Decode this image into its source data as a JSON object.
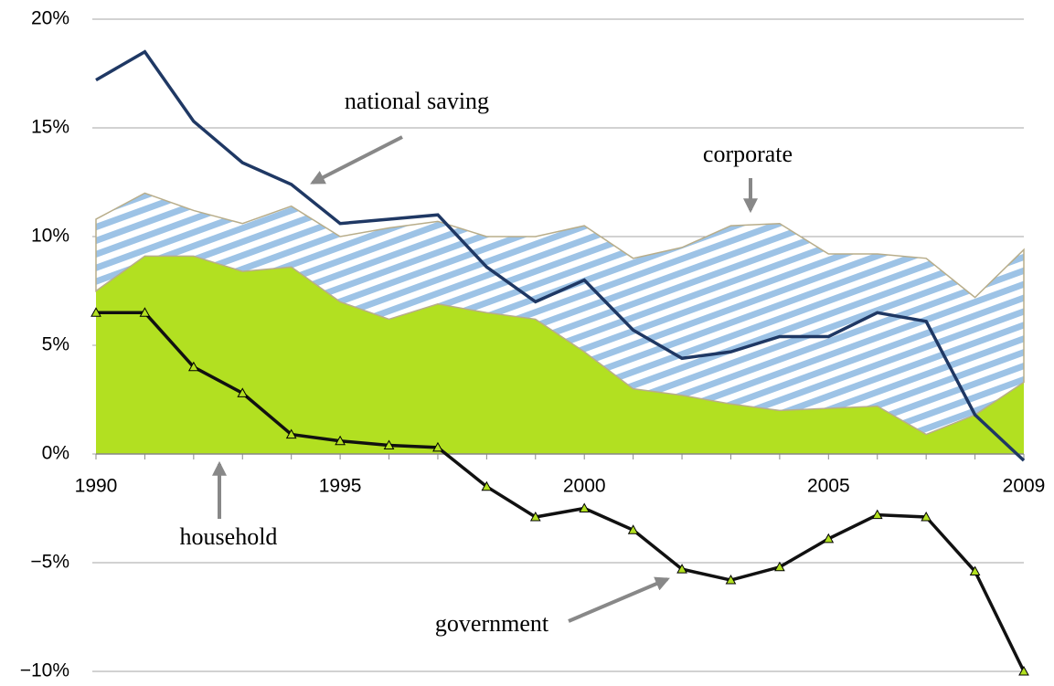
{
  "chart_data": {
    "type": "area",
    "x": [
      1990,
      1991,
      1992,
      1993,
      1994,
      1995,
      1996,
      1997,
      1998,
      1999,
      2000,
      2001,
      2002,
      2003,
      2004,
      2005,
      2006,
      2007,
      2008,
      2009
    ],
    "xlim": [
      1990,
      2009
    ],
    "xticks": [
      1990,
      1995,
      2000,
      2005,
      2009
    ],
    "ylim": [
      -10,
      20
    ],
    "yticks": [
      {
        "value": -10,
        "label": "−10%"
      },
      {
        "value": -5,
        "label": "−5%"
      },
      {
        "value": 0,
        "label": "0%"
      },
      {
        "value": 5,
        "label": "5%"
      },
      {
        "value": 10,
        "label": "10%"
      },
      {
        "value": 15,
        "label": "15%"
      },
      {
        "value": 20,
        "label": "20%"
      }
    ],
    "grid": true,
    "stacked": true,
    "series": [
      {
        "name": "household",
        "kind": "area",
        "color": "#b2e021",
        "values": [
          7.5,
          9.1,
          9.1,
          8.4,
          8.6,
          7.0,
          6.2,
          6.9,
          6.5,
          6.2,
          4.7,
          3.0,
          2.7,
          2.3,
          2.0,
          2.1,
          2.2,
          0.9,
          1.8,
          3.3
        ]
      },
      {
        "name": "corporate",
        "kind": "area",
        "color": "#9dc3e6",
        "values": [
          3.3,
          2.9,
          2.1,
          2.2,
          2.8,
          3.0,
          4.2,
          3.8,
          3.5,
          3.8,
          5.8,
          6.0,
          6.8,
          8.2,
          8.6,
          7.1,
          7.0,
          8.1,
          5.4,
          6.1
        ]
      },
      {
        "name": "national saving",
        "kind": "line",
        "color": "#1f3864",
        "values": [
          17.2,
          18.5,
          15.3,
          13.4,
          12.4,
          10.6,
          10.8,
          11.0,
          8.6,
          7.0,
          8.0,
          5.7,
          4.4,
          4.7,
          5.4,
          5.4,
          6.5,
          6.1,
          1.8,
          -0.3
        ]
      },
      {
        "name": "government",
        "kind": "line",
        "markers": true,
        "color": "#111111",
        "values": [
          6.5,
          6.5,
          4.0,
          2.8,
          0.9,
          0.6,
          0.4,
          0.3,
          -1.5,
          -2.9,
          -2.5,
          -3.5,
          -5.3,
          -5.8,
          -5.2,
          -3.9,
          -2.8,
          -2.9,
          -5.4,
          -10.0
        ]
      }
    ]
  }
}
